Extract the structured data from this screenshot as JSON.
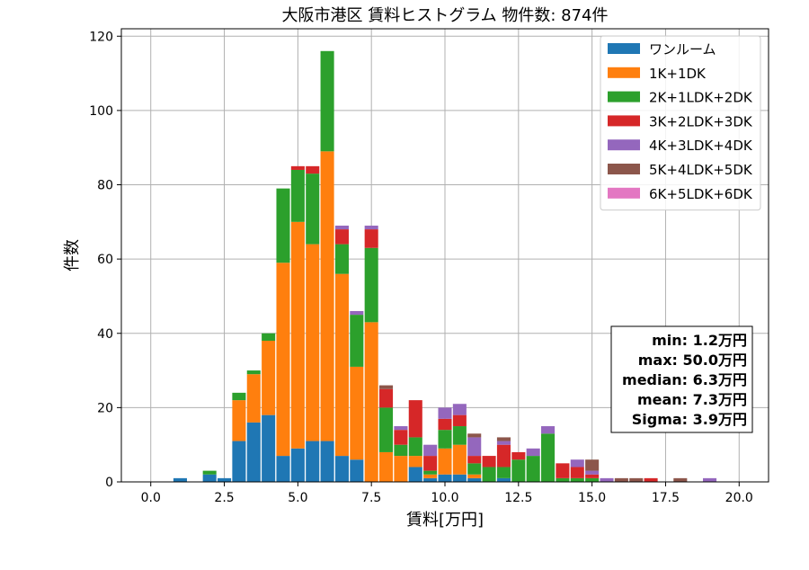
{
  "chart_data": {
    "type": "bar",
    "stacked": true,
    "title": "大阪市港区 賃料ヒストグラム  物件数: 874件",
    "xlabel": "賃料[万円]",
    "ylabel": "件数",
    "xlim": [
      -1.0,
      21.0
    ],
    "ylim": [
      0,
      122
    ],
    "grid": true,
    "legend_position": "top-right",
    "bin_width": 0.5,
    "x_ticks": [
      0,
      2.5,
      5,
      7.5,
      10,
      12.5,
      15,
      17.5,
      20
    ],
    "x_tick_labels": [
      "0.0",
      "2.5",
      "5.0",
      "7.5",
      "10.0",
      "12.5",
      "15.0",
      "17.5",
      "20.0"
    ],
    "y_ticks": [
      0,
      20,
      40,
      60,
      80,
      100,
      120
    ],
    "y_tick_labels": [
      "0",
      "20",
      "40",
      "60",
      "80",
      "100",
      "120"
    ],
    "bins": [
      1.0,
      2.0,
      2.5,
      3.0,
      3.5,
      4.0,
      4.5,
      5.0,
      5.5,
      6.0,
      6.5,
      7.0,
      7.5,
      8.0,
      8.5,
      9.0,
      9.5,
      10.0,
      10.5,
      11.0,
      11.5,
      12.0,
      12.5,
      13.0,
      13.5,
      14.0,
      14.5,
      15.0,
      15.5,
      16.0,
      16.5,
      17.0,
      18.0,
      19.0
    ],
    "series": [
      {
        "name": "ワンルーム",
        "color": "#1f77b4",
        "values": [
          1,
          2,
          1,
          11,
          16,
          18,
          7,
          9,
          11,
          11,
          7,
          6,
          0,
          0,
          0,
          4,
          1,
          2,
          2,
          1,
          0,
          1,
          0,
          0,
          0,
          0,
          0,
          0,
          0,
          0,
          0,
          0,
          0,
          0
        ]
      },
      {
        "name": "1K+1DK",
        "color": "#ff7f0e",
        "values": [
          0,
          0,
          0,
          11,
          13,
          20,
          52,
          61,
          53,
          78,
          49,
          25,
          43,
          8,
          7,
          3,
          1,
          7,
          8,
          1,
          0,
          0,
          0,
          0,
          0,
          0,
          0,
          0,
          0,
          0,
          0,
          0,
          0,
          0
        ]
      },
      {
        "name": "2K+1LDK+2DK",
        "color": "#2ca02c",
        "values": [
          0,
          1,
          0,
          2,
          1,
          2,
          20,
          14,
          19,
          27,
          8,
          14,
          20,
          12,
          3,
          5,
          1,
          5,
          5,
          3,
          4,
          3,
          6,
          7,
          13,
          1,
          1,
          1,
          0,
          0,
          0,
          0,
          0,
          0
        ]
      },
      {
        "name": "3K+2LDK+3DK",
        "color": "#d62728",
        "values": [
          0,
          0,
          0,
          0,
          0,
          0,
          0,
          1,
          2,
          0,
          4,
          0,
          5,
          5,
          4,
          10,
          4,
          3,
          3,
          2,
          3,
          6,
          2,
          0,
          0,
          4,
          3,
          1,
          0,
          0,
          0,
          1,
          0,
          0
        ]
      },
      {
        "name": "4K+3LDK+4DK",
        "color": "#9467bd",
        "values": [
          0,
          0,
          0,
          0,
          0,
          0,
          0,
          0,
          0,
          0,
          1,
          1,
          1,
          0,
          1,
          0,
          3,
          3,
          3,
          5,
          0,
          1,
          0,
          2,
          2,
          0,
          2,
          1,
          1,
          0,
          0,
          0,
          0,
          1
        ]
      },
      {
        "name": "5K+4LDK+5DK",
        "color": "#8c564b",
        "values": [
          0,
          0,
          0,
          0,
          0,
          0,
          0,
          0,
          0,
          0,
          0,
          0,
          0,
          1,
          0,
          0,
          0,
          0,
          0,
          1,
          0,
          1,
          0,
          0,
          0,
          0,
          0,
          3,
          0,
          1,
          1,
          0,
          1,
          0
        ]
      },
      {
        "name": "6K+5LDK+6DK",
        "color": "#e377c2",
        "values": [
          0,
          0,
          0,
          0,
          0,
          0,
          0,
          0,
          0,
          0,
          0,
          0,
          0,
          0,
          0,
          0,
          0,
          0,
          0,
          0,
          0,
          0,
          0,
          0,
          0,
          0,
          0,
          0,
          0,
          0,
          0,
          0,
          0,
          0
        ]
      }
    ],
    "annotations": [
      "min: 1.2万円",
      "max: 50.0万円",
      "median: 6.3万円",
      "mean: 7.3万円",
      "Sigma: 3.9万円"
    ]
  }
}
